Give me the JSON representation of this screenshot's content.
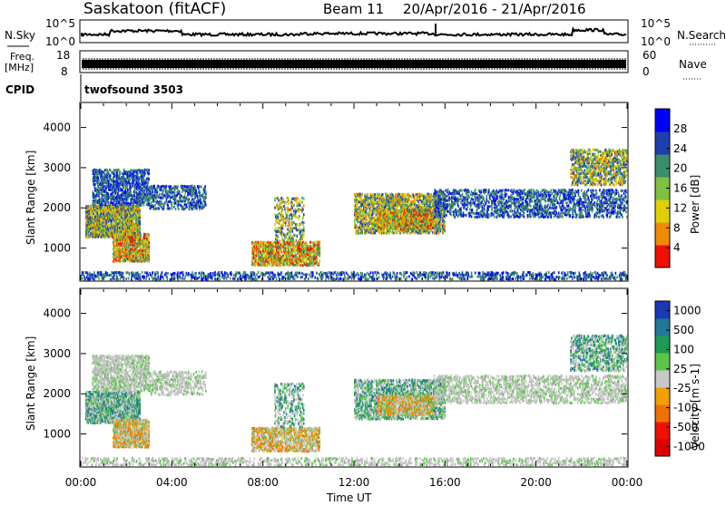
{
  "header": {
    "station": "Saskatoon (fitACF)",
    "beam": "Beam 11",
    "date_range": "20/Apr/2016 - 21/Apr/2016",
    "cpid_label": "CPID",
    "cpid_value": "twofsound 3503"
  },
  "nsky_panel": {
    "left_label": "N.Sky",
    "right_label": "N.Search",
    "tick_top": "10^5",
    "tick_bottom": "10^0",
    "right_tick_top": "10^5",
    "right_tick_bottom": "10^0"
  },
  "freq_panel": {
    "left_label_1": "Freq.",
    "left_label_2": "[MHz]",
    "left_tick_top": "18",
    "left_tick_bottom": "8",
    "right_label": "Nave",
    "right_tick_top": "60",
    "right_tick_bottom": "0"
  },
  "chart_data": [
    {
      "type": "heatmap",
      "name": "power",
      "ylabel": "Slant Range [km]",
      "ylim": [
        200,
        4600
      ],
      "yticks": [
        "1000",
        "2000",
        "3000",
        "4000"
      ],
      "colorbar_label": "Power [dB]",
      "colorbar_ticks": [
        "4",
        "8",
        "12",
        "16",
        "20",
        "24",
        "28"
      ],
      "colorbar_colors": [
        "#0000ff",
        "#1f3fb0",
        "#3a8f6a",
        "#7fc040",
        "#e0d000",
        "#f08a00",
        "#f01000"
      ],
      "colorbar_range": [
        0,
        30
      ]
    },
    {
      "type": "heatmap",
      "name": "velocity",
      "ylabel": "Slant Range [km]",
      "ylim": [
        200,
        4600
      ],
      "yticks": [
        "1000",
        "2000",
        "3000",
        "4000"
      ],
      "colorbar_label": "Velocity [m s-1]",
      "colorbar_ticks": [
        "1000",
        "500",
        "100",
        "25",
        "-25",
        "-100",
        "-500",
        "-1000"
      ],
      "colorbar_colors": [
        "#1c39b5",
        "#22789a",
        "#1d9a55",
        "#5cc54a",
        "#c8c8c8",
        "#f0a000",
        "#f07000",
        "#f01000",
        "#e00000"
      ]
    }
  ],
  "xaxis": {
    "label": "Time UT",
    "ticks": [
      "00:00",
      "04:00",
      "08:00",
      "12:00",
      "16:00",
      "20:00",
      "00:00"
    ]
  }
}
